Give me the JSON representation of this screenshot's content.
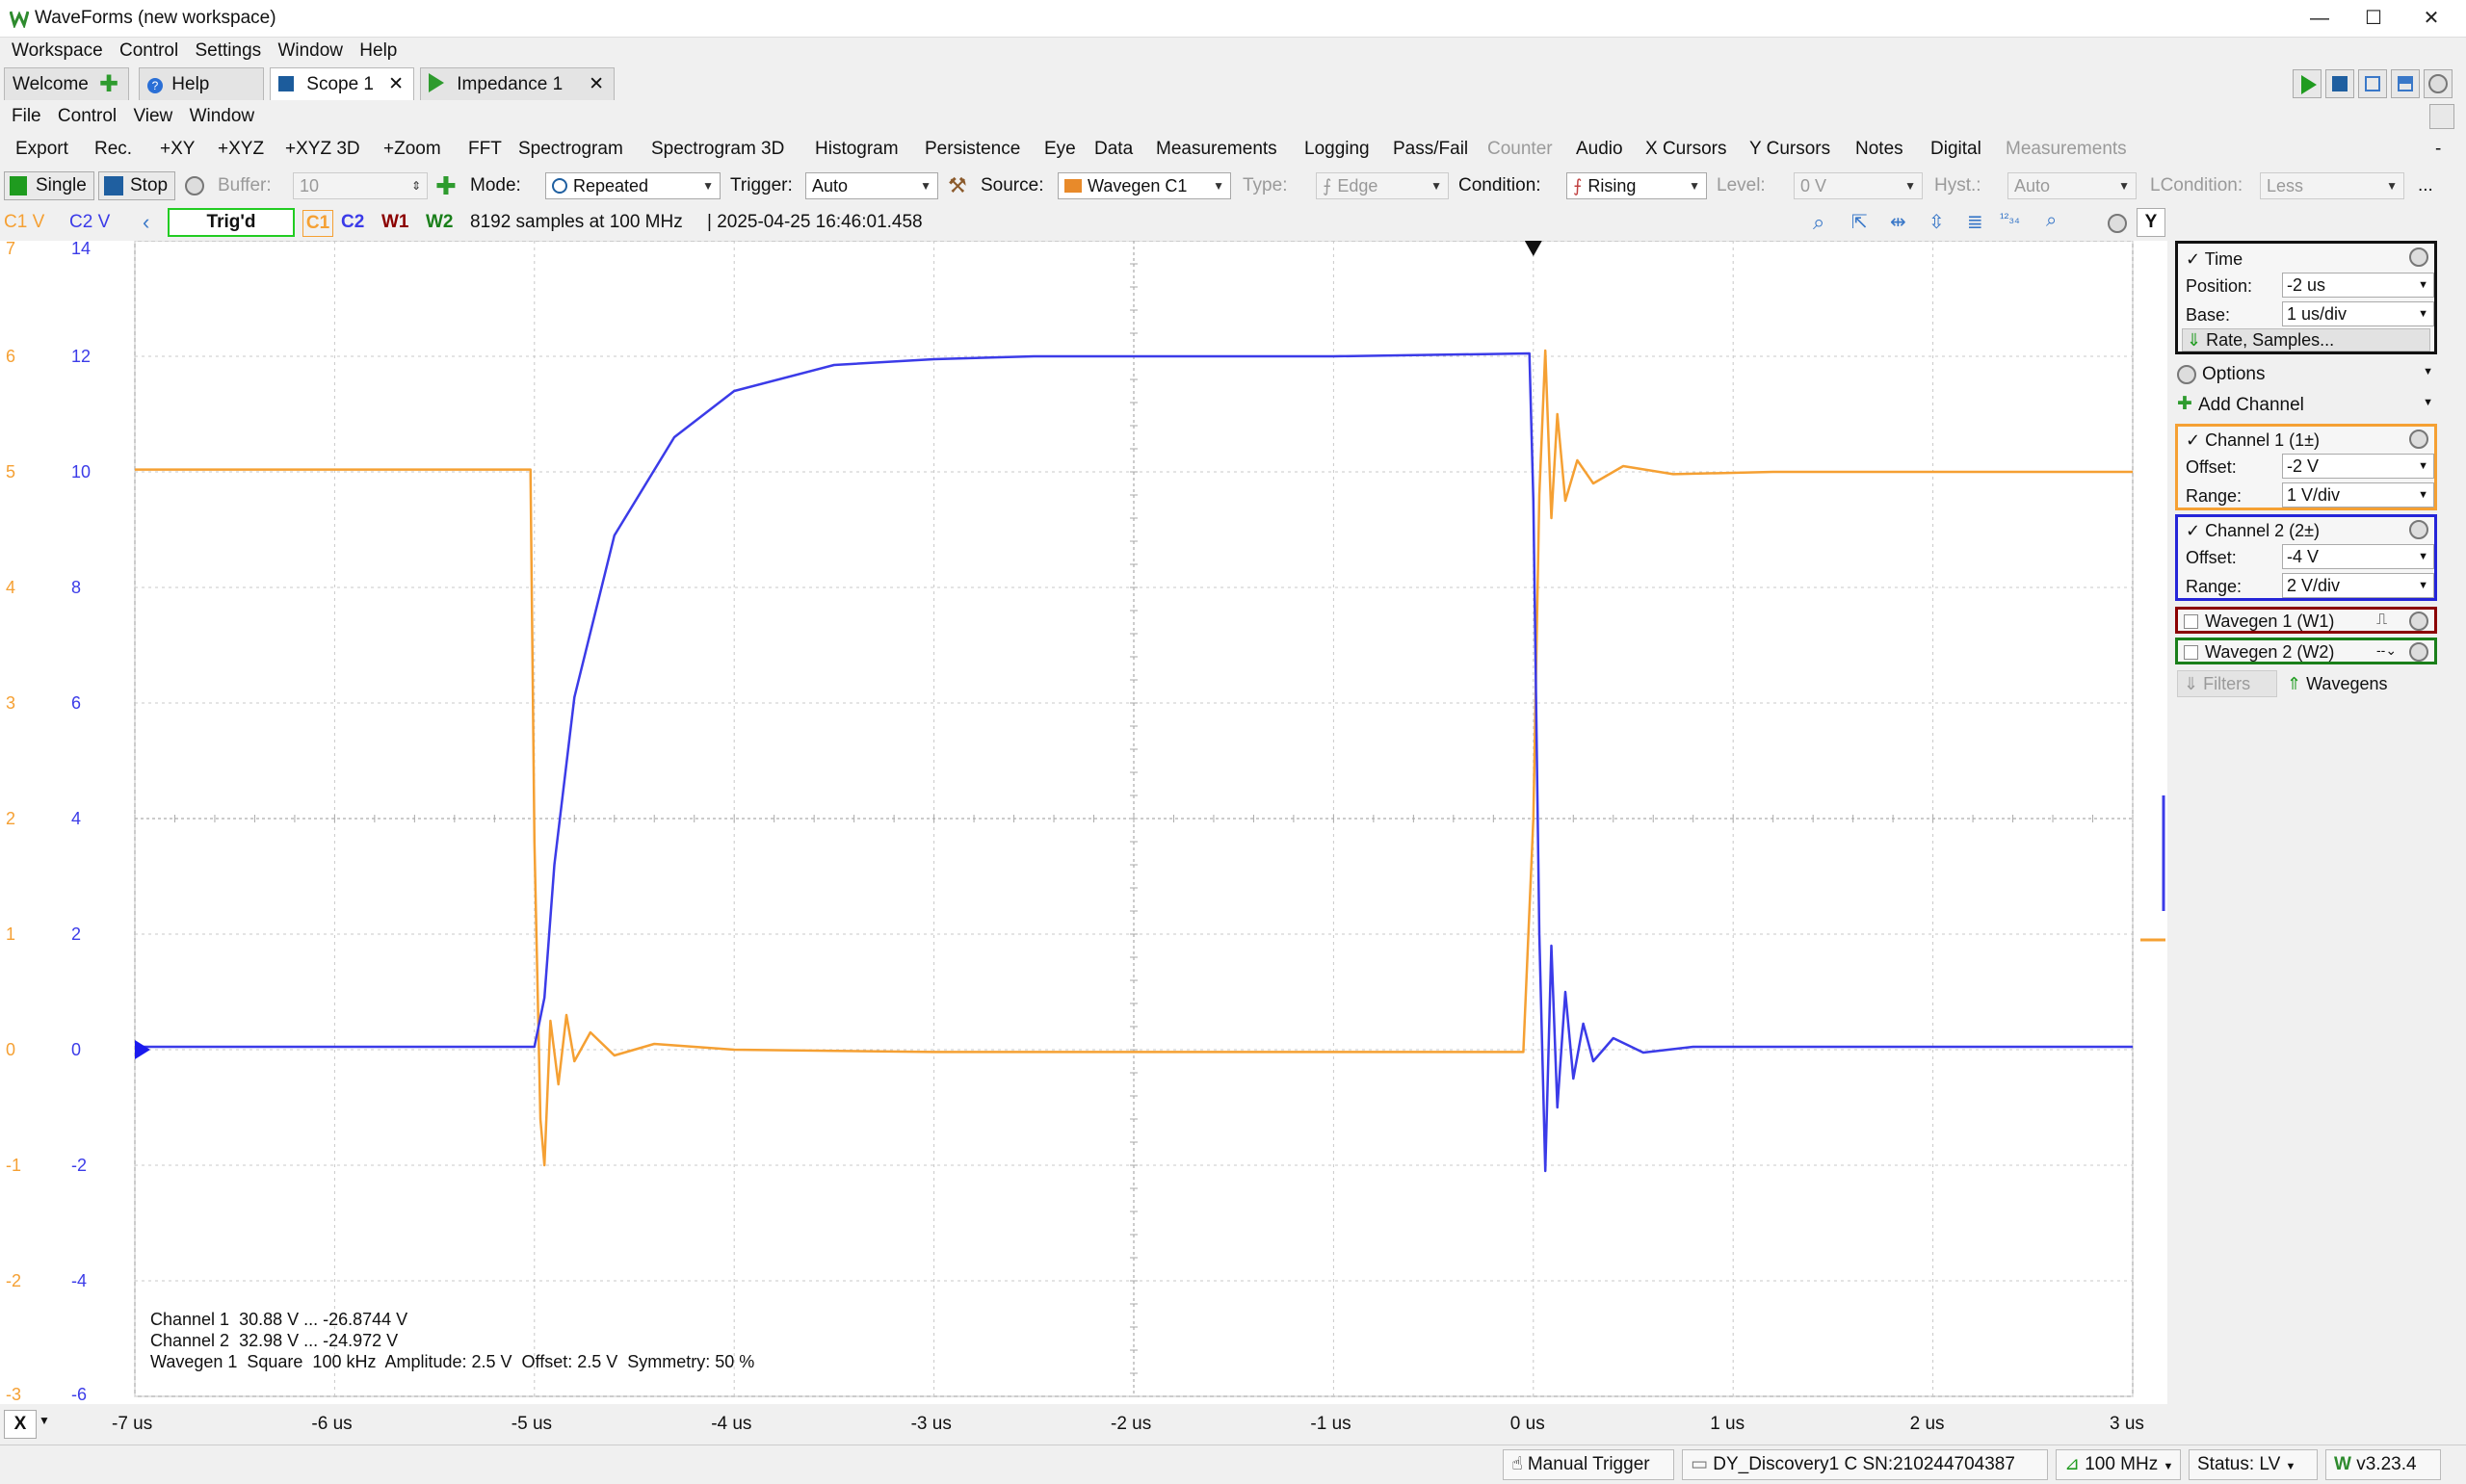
{
  "window": {
    "title": "WaveForms (new workspace)"
  },
  "main_menu": [
    "Workspace",
    "Control",
    "Settings",
    "Window",
    "Help"
  ],
  "tabs": [
    {
      "label": "Welcome",
      "active": false
    },
    {
      "label": "Help",
      "active": false
    },
    {
      "label": "Scope 1",
      "active": true
    },
    {
      "label": "Impedance 1",
      "active": false
    }
  ],
  "scope_menu": [
    "File",
    "Control",
    "View",
    "Window"
  ],
  "instrument_menu": [
    "Export",
    "Rec.",
    "+XY",
    "+XYZ",
    "+XYZ 3D",
    "+Zoom",
    "FFT",
    "Spectrogram",
    "Spectrogram 3D",
    "Histogram",
    "Persistence",
    "Eye",
    "Data",
    "Measurements",
    "Logging",
    "Pass/Fail",
    "Counter",
    "Audio",
    "X Cursors",
    "Y Cursors",
    "Notes",
    "Digital",
    "Measurements"
  ],
  "toolbar": {
    "single": "Single",
    "stop": "Stop",
    "buffer_label": "Buffer:",
    "buffer_value": "10",
    "mode_label": "Mode:",
    "mode_value": "Repeated",
    "trigger_label": "Trigger:",
    "trigger_value": "Auto",
    "source_label": "Source:",
    "source_value": "Wavegen C1",
    "type_label": "Type:",
    "type_value": "Edge",
    "condition_label": "Condition:",
    "condition_value": "Rising",
    "level_label": "Level:",
    "level_value": "0 V",
    "hyst_label": "Hyst.:",
    "hyst_value": "Auto",
    "lcondition_label": "LCondition:",
    "lcondition_value": "Less",
    "more": "..."
  },
  "info_bar": {
    "c1v": "C1 V",
    "c2v": "C2 V",
    "trig_status": "Trig'd",
    "c1": "C1",
    "c2": "C2",
    "w1": "W1",
    "w2": "W2",
    "samples": "8192 samples at 100 MHz",
    "timestamp": "| 2025-04-25 16:46:01.458",
    "y_button": "Y"
  },
  "axes": {
    "c1_ticks": [
      "7",
      "6",
      "5",
      "4",
      "3",
      "2",
      "1",
      "0",
      "-1",
      "-2",
      "-3"
    ],
    "c2_ticks": [
      "14",
      "12",
      "10",
      "8",
      "6",
      "4",
      "2",
      "0",
      "-2",
      "-4",
      "-6"
    ],
    "x_ticks": [
      "-7 us",
      "-6 us",
      "-5 us",
      "-4 us",
      "-3 us",
      "-2 us",
      "-1 us",
      "0 us",
      "1 us",
      "2 us",
      "3 us"
    ],
    "x_button": "X"
  },
  "colors": {
    "c1": "#f5a033",
    "c2": "#3b3be8",
    "w1": "#8b0000",
    "w2": "#1a7f1a",
    "trig_green": "#22cc22"
  },
  "chart_data": {
    "type": "line",
    "x_unit": "us",
    "xlim": [
      -7,
      3
    ],
    "series": [
      {
        "name": "C1",
        "unit": "V",
        "ylim": [
          -3,
          7
        ],
        "x": [
          -7,
          -5.02,
          -5.0,
          -4.97,
          -4.95,
          -4.92,
          -4.88,
          -4.84,
          -4.8,
          -4.72,
          -4.6,
          -4.4,
          -4.0,
          -3.0,
          -0.05,
          0.0,
          0.03,
          0.06,
          0.09,
          0.12,
          0.16,
          0.22,
          0.3,
          0.45,
          0.7,
          1.2,
          3.0
        ],
        "y": [
          5.02,
          5.02,
          1.8,
          -0.6,
          -1.0,
          0.25,
          -0.3,
          0.3,
          -0.1,
          0.15,
          -0.05,
          0.05,
          0.0,
          -0.02,
          -0.02,
          2.0,
          4.8,
          6.05,
          4.6,
          5.5,
          4.75,
          5.1,
          4.9,
          5.05,
          4.98,
          5.0,
          5.0
        ]
      },
      {
        "name": "C2",
        "unit": "V",
        "ylim": [
          -6,
          14
        ],
        "x": [
          -7,
          -5.0,
          -4.95,
          -4.9,
          -4.8,
          -4.6,
          -4.3,
          -4.0,
          -3.5,
          -3.0,
          -2.5,
          -2.0,
          -1.0,
          -0.02,
          0.0,
          0.03,
          0.06,
          0.09,
          0.12,
          0.16,
          0.2,
          0.25,
          0.3,
          0.4,
          0.55,
          0.8,
          3.0
        ],
        "y": [
          0.05,
          0.05,
          0.9,
          3.2,
          6.1,
          8.9,
          10.6,
          11.4,
          11.85,
          11.95,
          12.0,
          12.0,
          12.0,
          12.05,
          9.5,
          2.0,
          -2.1,
          1.8,
          -1.0,
          1.0,
          -0.5,
          0.45,
          -0.2,
          0.2,
          -0.05,
          0.05,
          0.05
        ]
      }
    ]
  },
  "measurements": {
    "ch1": "Channel 1  30.88 V ... -26.8744 V",
    "ch2": "Channel 2  32.98 V ... -24.972 V",
    "wg1": "Wavegen 1  Square  100 kHz  Amplitude: 2.5 V  Offset: 2.5 V  Symmetry: 50 %"
  },
  "panel": {
    "time": {
      "title": "Time",
      "position_label": "Position:",
      "position_value": "-2 us",
      "base_label": "Base:",
      "base_value": "1 us/div",
      "rate_button": "Rate, Samples..."
    },
    "options": "Options",
    "add_channel": "Add Channel",
    "ch1": {
      "title": "Channel 1 (1±)",
      "offset_label": "Offset:",
      "offset_value": "-2 V",
      "range_label": "Range:",
      "range_value": "1 V/div"
    },
    "ch2": {
      "title": "Channel 2 (2±)",
      "offset_label": "Offset:",
      "offset_value": "-4 V",
      "range_label": "Range:",
      "range_value": "2 V/div"
    },
    "w1": "Wavegen 1 (W1)",
    "w2": "Wavegen 2 (W2)",
    "filters": "Filters",
    "wavegens": "Wavegens"
  },
  "status": {
    "manual_trigger": "Manual Trigger",
    "device": "DY_Discovery1 C SN:210244704387",
    "rate": "100 MHz",
    "status": "Status: LV",
    "version": "v3.23.4"
  }
}
